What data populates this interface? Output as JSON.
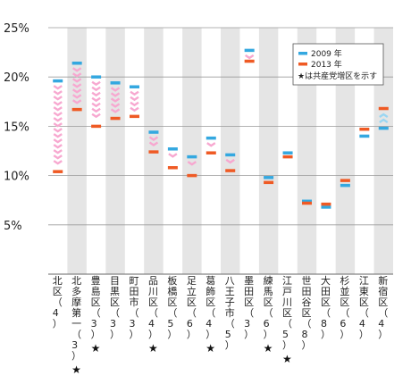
{
  "chart_data": {
    "type": "range-bar",
    "y_unit": "%",
    "ylim": [
      0,
      25
    ],
    "yticks": [
      5,
      10,
      15,
      20,
      25
    ],
    "ytick_labels": [
      "5%",
      "10%",
      "15%",
      "20%",
      "25%"
    ],
    "grid": true,
    "legend_position": "top-right",
    "legend": {
      "series_2009": "2009 年",
      "series_2013": "2013 年",
      "star_note": "★は共産党増区を示す"
    },
    "colors": {
      "y2009": "#34a8e0",
      "y2013": "#ef5a24",
      "arrow_down": "#f7a8d0",
      "arrow_up": "#9ad6f2",
      "stripe": "#e5e5e5",
      "grid": "#9a9a9a"
    },
    "categories": [
      {
        "name": "北区",
        "seats": "（4）",
        "star": false,
        "y2009": 19.6,
        "y2013": 10.4
      },
      {
        "name": "北多摩第一",
        "seats": "（3）",
        "star": true,
        "y2009": 21.4,
        "y2013": 16.7
      },
      {
        "name": "豊島区",
        "seats": "（3）",
        "star": true,
        "y2009": 20.0,
        "y2013": 15.0
      },
      {
        "name": "目黒区",
        "seats": "（3）",
        "star": false,
        "y2009": 19.4,
        "y2013": 15.8
      },
      {
        "name": "町田市",
        "seats": "（3）",
        "star": false,
        "y2009": 19.0,
        "y2013": 16.0
      },
      {
        "name": "品川区",
        "seats": "（4）",
        "star": true,
        "y2009": 14.4,
        "y2013": 12.4
      },
      {
        "name": "板橋区",
        "seats": "（5）",
        "star": false,
        "y2009": 12.7,
        "y2013": 10.8
      },
      {
        "name": "足立区",
        "seats": "（6）",
        "star": false,
        "y2009": 11.9,
        "y2013": 10.0
      },
      {
        "name": "葛飾区",
        "seats": "（4）",
        "star": true,
        "y2009": 13.8,
        "y2013": 12.3
      },
      {
        "name": "八王子市",
        "seats": "（5）",
        "star": false,
        "y2009": 12.1,
        "y2013": 10.5
      },
      {
        "name": "墨田区",
        "seats": "（3）",
        "star": false,
        "y2009": 22.7,
        "y2013": 21.6
      },
      {
        "name": "練馬区",
        "seats": "（6）",
        "star": true,
        "y2009": 9.8,
        "y2013": 9.3
      },
      {
        "name": "江戸川区",
        "seats": "（5）",
        "star": true,
        "y2009": 12.3,
        "y2013": 11.9
      },
      {
        "name": "世田谷区",
        "seats": "（8）",
        "star": false,
        "y2009": 7.4,
        "y2013": 7.2
      },
      {
        "name": "大田区",
        "seats": "（8）",
        "star": false,
        "y2009": 6.8,
        "y2013": 7.1
      },
      {
        "name": "杉並区",
        "seats": "（6）",
        "star": false,
        "y2009": 9.0,
        "y2013": 9.5
      },
      {
        "name": "江東区",
        "seats": "（4）",
        "star": false,
        "y2009": 14.0,
        "y2013": 14.7
      },
      {
        "name": "新宿区",
        "seats": "（4）",
        "star": false,
        "y2009": 14.8,
        "y2013": 16.8
      }
    ]
  }
}
